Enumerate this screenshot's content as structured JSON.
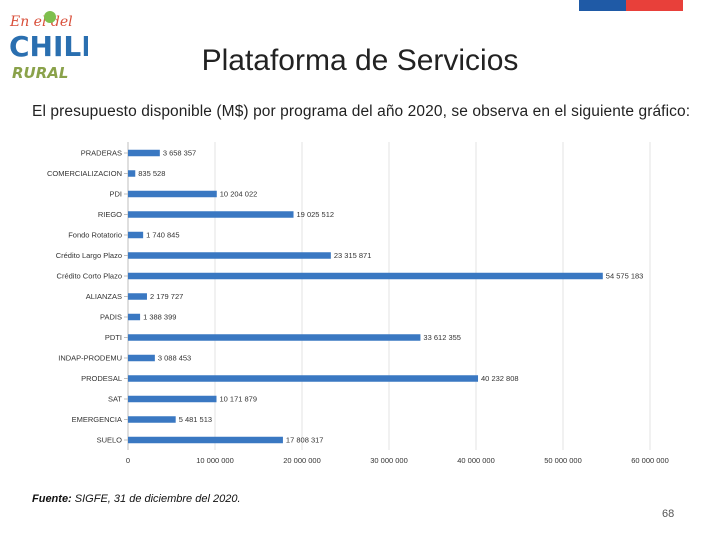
{
  "header": {
    "title": "Plataforma de Servicios",
    "logo_top_text": "En el del",
    "logo_main_text": "CHILE",
    "logo_sub_text": "RURAL",
    "flag_colors": [
      "#1f5aa6",
      "#e8403a"
    ]
  },
  "subtitle": "El presupuesto disponible (M$) por programa del año 2020, se observa en el siguiente gráfico:",
  "chart_data": {
    "type": "bar",
    "orientation": "horizontal",
    "title": "",
    "xlabel": "",
    "ylabel": "",
    "xlim": [
      0,
      60000000
    ],
    "x_ticks": [
      0,
      10000000,
      20000000,
      30000000,
      40000000,
      50000000,
      60000000
    ],
    "x_tick_labels": [
      "0",
      "10 000 000",
      "20 000 000",
      "30 000 000",
      "40 000 000",
      "50 000 000",
      "60 000 000"
    ],
    "bar_color": "#3a78c2",
    "categories": [
      "PRADERAS",
      "COMERCIALIZACION",
      "PDI",
      "RIEGO",
      "Fondo Rotatorio",
      "Crédito Largo Plazo",
      "Crédito Corto Plazo",
      "ALIANZAS",
      "PADIS",
      "PDTI",
      "INDAP-PRODEMU",
      "PRODESAL",
      "SAT",
      "EMERGENCIA",
      "SUELO"
    ],
    "values": [
      3658357,
      835528,
      10204022,
      19025512,
      1740845,
      23315871,
      54575183,
      2179727,
      1388399,
      33612355,
      3088453,
      40232808,
      10171879,
      5481513,
      17808317
    ],
    "value_labels": [
      "3 658 357",
      "835 528",
      "10 204 022",
      "19 025 512",
      "1 740 845",
      "23 315 871",
      "54 575 183",
      "2 179 727",
      "1 388 399",
      "33 612 355",
      "3 088 453",
      "40 232 808",
      "10 171 879",
      "5 481 513",
      "17 808 317"
    ]
  },
  "footer": {
    "source_label": "Fuente:",
    "source_text": " SIGFE, 31 de diciembre del 2020.",
    "page_number": "68"
  }
}
